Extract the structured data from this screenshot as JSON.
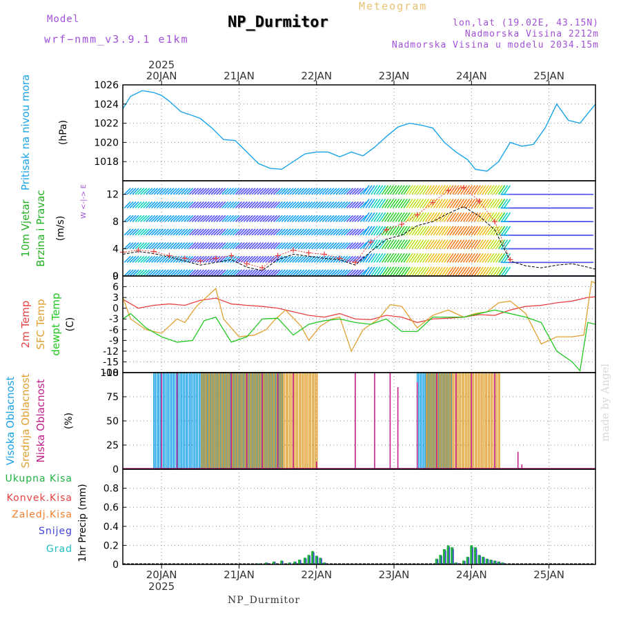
{
  "header": {
    "model_label": "Model",
    "model_name": "wrf−nmm_v3.9.1 e1km",
    "meteogram_label": "Meteogram",
    "station_title": "NP_Durmitor",
    "lonlat": "lon,lat (19.02E, 43.15N)",
    "elevation": "Nadmorska Visina 2212m",
    "model_elevation": "Nadmorska Visina u modelu 2034.15m",
    "year_top": "2025",
    "year_bottom": "2025",
    "footer_station": "NP_Durmitor",
    "signature": "made by Angel"
  },
  "colors": {
    "pressure": "#1aa3e8",
    "t2m": "#e84040",
    "sfc": "#e0a030",
    "dewpt": "#20c820",
    "high_cloud": "#1aa3e8",
    "mid_cloud": "#e0a030",
    "low_cloud": "#c0208a",
    "wind_speed": "#000000",
    "gust": "#e84040",
    "precip_total": "#20b040",
    "precip_conv": "#e84040",
    "precip_frozen": "#f08030",
    "precip_snow": "#4040d8",
    "precip_graupel": "#20c0c0",
    "panel_label_wind1": "#20b020",
    "panel_label_wind2": "#20b020"
  },
  "chart_data": [
    {
      "type": "line",
      "panel": "pressure",
      "title": "",
      "ylabel_main": "Pritisak na nivou mora",
      "ylabel_unit": "(hPa)",
      "x_ticks": [
        "20JAN",
        "21JAN",
        "22JAN",
        "23JAN",
        "24JAN",
        "25JAN"
      ],
      "x_range_days": [
        19.5,
        25.6
      ],
      "ylim": [
        1016,
        1026
      ],
      "yticks": [
        1018,
        1020,
        1022,
        1024,
        1026
      ],
      "grid": true,
      "series": [
        {
          "x": [
            19.5,
            19.6,
            19.75,
            19.9,
            20.0,
            20.1,
            20.25,
            20.4,
            20.5,
            20.65,
            20.8,
            20.95,
            21.1,
            21.25,
            21.4,
            21.55,
            21.7,
            21.85,
            22.0,
            22.15,
            22.3,
            22.45,
            22.6,
            22.75,
            22.9,
            23.05,
            23.2,
            23.35,
            23.5,
            23.65,
            23.8,
            23.95,
            24.05,
            24.2,
            24.35,
            24.5,
            24.65,
            24.8,
            24.95,
            25.1,
            25.25,
            25.4,
            25.5,
            25.6
          ],
          "values": [
            1023.5,
            1024.8,
            1025.4,
            1025.2,
            1024.9,
            1024.3,
            1023.2,
            1022.8,
            1022.5,
            1021.5,
            1020.3,
            1020.2,
            1019.0,
            1017.8,
            1017.3,
            1017.2,
            1018.0,
            1018.8,
            1019.0,
            1019.0,
            1018.5,
            1019.0,
            1018.6,
            1019.5,
            1020.6,
            1021.6,
            1022.0,
            1021.8,
            1021.5,
            1020.0,
            1019.0,
            1018.2,
            1017.2,
            1017.0,
            1018.0,
            1020.0,
            1019.6,
            1019.8,
            1021.5,
            1024.0,
            1022.3,
            1022.0,
            1023.0,
            1024.0
          ]
        }
      ]
    },
    {
      "type": "line",
      "panel": "wind",
      "ylabel_main": "10m Vjetar",
      "ylabel_main2": "Brzina i Pravac",
      "ylabel_unit": "(m/s)",
      "compass": "W <-|-> E",
      "ylim": [
        0,
        14
      ],
      "yticks": [
        0,
        4,
        8,
        12
      ],
      "grid": true,
      "barb_levels": [
        0,
        2,
        4,
        6,
        8,
        10,
        12
      ],
      "series": [
        {
          "name": "wind speed",
          "x": [
            19.5,
            19.7,
            19.9,
            20.1,
            20.3,
            20.5,
            20.7,
            20.9,
            21.1,
            21.3,
            21.5,
            21.7,
            21.9,
            22.1,
            22.3,
            22.5,
            22.7,
            22.9,
            23.1,
            23.3,
            23.5,
            23.7,
            23.9,
            24.1,
            24.3,
            24.5,
            24.7,
            24.9,
            25.1,
            25.3,
            25.5,
            25.6
          ],
          "values": [
            3.2,
            3.6,
            3.3,
            2.8,
            2.2,
            1.6,
            2.0,
            2.4,
            1.3,
            0.8,
            2.4,
            3.2,
            2.9,
            2.6,
            2.4,
            1.6,
            3.6,
            5.4,
            6.0,
            7.4,
            8.0,
            9.2,
            10.2,
            8.8,
            6.8,
            2.2,
            1.5,
            1.2,
            1.6,
            1.8,
            1.3,
            1.0
          ]
        },
        {
          "name": "gust",
          "x": [
            19.5,
            19.7,
            19.9,
            20.1,
            20.3,
            20.5,
            20.7,
            20.9,
            21.1,
            21.3,
            21.5,
            21.7,
            21.9,
            22.1,
            22.3,
            22.5,
            22.7,
            22.9,
            23.1,
            23.3,
            23.5,
            23.7,
            23.9,
            24.1,
            24.3,
            24.5
          ],
          "values": [
            3.5,
            3.8,
            3.6,
            3.0,
            2.6,
            2.2,
            2.6,
            3.0,
            1.8,
            1.2,
            3.0,
            3.8,
            3.4,
            3.2,
            2.6,
            2.0,
            5.0,
            6.8,
            7.6,
            9.0,
            10.8,
            12.6,
            13.0,
            11.0,
            8.0,
            2.4
          ]
        }
      ]
    },
    {
      "type": "line",
      "panel": "temperature",
      "ylabel_main": "2m Temp",
      "ylabel_main2": "SFC Temp",
      "ylabel_main3": "dewpt Temp",
      "ylabel_unit": "(C)",
      "ylim": [
        -18,
        9
      ],
      "yticks": [
        -18,
        -15,
        -12,
        -9,
        -6,
        -3,
        0,
        3,
        6,
        9
      ],
      "grid": true,
      "series": [
        {
          "name": "2m Temp",
          "x": [
            19.5,
            19.7,
            19.9,
            20.1,
            20.3,
            20.5,
            20.7,
            20.9,
            21.1,
            21.3,
            21.5,
            21.7,
            21.9,
            22.1,
            22.3,
            22.5,
            22.7,
            22.9,
            23.1,
            23.3,
            23.5,
            23.7,
            23.9,
            24.1,
            24.3,
            24.5,
            24.7,
            24.9,
            25.1,
            25.3,
            25.5,
            25.6
          ],
          "values": [
            2.5,
            0.0,
            0.8,
            1.2,
            0.8,
            2.2,
            2.8,
            1.2,
            0.8,
            0.5,
            0.0,
            -1.0,
            -2.0,
            -2.5,
            -1.5,
            -3.0,
            -3.2,
            -2.0,
            -2.5,
            -4.0,
            -3.0,
            -2.8,
            -2.5,
            -1.8,
            -2.0,
            -0.5,
            0.5,
            0.8,
            1.5,
            2.0,
            3.0,
            3.2
          ]
        },
        {
          "name": "SFC Temp",
          "x": [
            19.5,
            19.6,
            19.8,
            20.0,
            20.2,
            20.3,
            20.45,
            20.55,
            20.7,
            20.8,
            21.0,
            21.2,
            21.35,
            21.45,
            21.6,
            21.8,
            21.9,
            22.05,
            22.2,
            22.3,
            22.45,
            22.6,
            22.8,
            22.95,
            23.1,
            23.3,
            23.5,
            23.7,
            23.9,
            24.05,
            24.2,
            24.35,
            24.5,
            24.7,
            24.9,
            25.1,
            25.3,
            25.45,
            25.55,
            25.6
          ],
          "values": [
            3.0,
            -3.0,
            -6.0,
            -7.0,
            -3.0,
            -4.0,
            0.5,
            2.5,
            5.5,
            -3.0,
            -8.0,
            -7.5,
            -6.0,
            -3.5,
            -0.5,
            -5.0,
            -9.0,
            -5.0,
            -3.0,
            -2.5,
            -12.0,
            -6.0,
            -3.0,
            1.0,
            0.5,
            -5.5,
            -2.0,
            -0.5,
            -2.5,
            -1.5,
            -1.0,
            1.5,
            2.0,
            -1.5,
            -10.0,
            -8.0,
            -8.0,
            -7.5,
            7.5,
            7.0
          ]
        },
        {
          "name": "dewpt Temp",
          "x": [
            19.5,
            19.6,
            19.8,
            20.0,
            20.2,
            20.4,
            20.55,
            20.7,
            20.9,
            21.1,
            21.3,
            21.5,
            21.7,
            21.9,
            22.1,
            22.3,
            22.5,
            22.7,
            22.9,
            23.1,
            23.3,
            23.5,
            23.7,
            23.9,
            24.1,
            24.3,
            24.5,
            24.7,
            24.9,
            25.1,
            25.3,
            25.4,
            25.5,
            25.6
          ],
          "values": [
            -3.0,
            -1.5,
            -5.5,
            -8.0,
            -9.5,
            -9.0,
            -3.5,
            -2.5,
            -9.5,
            -8.0,
            -3.0,
            -2.8,
            -7.5,
            -4.5,
            -3.5,
            -3.0,
            -4.0,
            -4.5,
            -3.0,
            -6.5,
            -6.5,
            -2.5,
            -2.5,
            -2.5,
            -1.5,
            -0.5,
            -1.5,
            -2.5,
            -4.0,
            -12.0,
            -15.0,
            -17.5,
            -4.0,
            -4.5
          ]
        }
      ]
    },
    {
      "type": "bar",
      "panel": "cloud",
      "ylabel_main": "Visoka Oblacnost",
      "ylabel_main2": "Srednja Oblacnost",
      "ylabel_main3": "Niska Oblacnost",
      "ylabel_unit": "(%)",
      "ylim": [
        0,
        100
      ],
      "yticks": [
        0,
        25,
        50,
        75,
        100
      ],
      "grid": true,
      "high_cloud": {
        "start": 19.9,
        "end": 21.55,
        "step": 0.042,
        "value": 100
      },
      "mid_cloud": {
        "start": 20.5,
        "end": 22.0,
        "step": 0.042,
        "value": 100
      },
      "low_cloud": {
        "x": [
          20.0,
          20.2,
          20.9,
          21.1,
          21.3,
          21.5,
          21.7,
          22.0,
          22.5,
          22.75,
          22.95,
          23.05,
          23.3,
          23.55,
          23.8,
          24.0,
          24.3,
          24.6,
          24.65
        ],
        "values": [
          100,
          100,
          100,
          100,
          100,
          100,
          100,
          8,
          100,
          100,
          100,
          85,
          90,
          100,
          100,
          100,
          100,
          18,
          5
        ]
      },
      "high_cloud_2": {
        "start": 23.3,
        "end": 23.75,
        "step": 0.042,
        "value": 100
      },
      "mid_cloud_2": {
        "start": 23.4,
        "end": 24.35,
        "step": 0.042,
        "value": 100
      }
    },
    {
      "type": "bar",
      "panel": "precip",
      "ylabel_main": "1hr Precip",
      "ylabel_unit": "(mm)",
      "legend": [
        "Ukupna Kisa",
        "Konvek.Kisa",
        "Zaledj.Kisa",
        "Snijeg",
        "Grad"
      ],
      "ylim": [
        0,
        1.0
      ],
      "yticks": [
        0,
        0.2,
        0.4,
        0.6,
        0.8
      ],
      "grid": true,
      "x": [
        21.25,
        21.35,
        21.45,
        21.55,
        21.65,
        21.72,
        21.78,
        21.85,
        21.9,
        21.95,
        22.0,
        22.05,
        22.1,
        23.55,
        23.6,
        23.65,
        23.7,
        23.75,
        23.8,
        23.9,
        23.95,
        24.0,
        24.05,
        24.1,
        24.15,
        24.2,
        24.25,
        24.3,
        24.35,
        24.4
      ],
      "values": [
        0.01,
        0.02,
        0.03,
        0.04,
        0.02,
        0.03,
        0.05,
        0.07,
        0.1,
        0.14,
        0.09,
        0.07,
        0.02,
        0.06,
        0.1,
        0.16,
        0.2,
        0.18,
        0.02,
        0.04,
        0.08,
        0.2,
        0.18,
        0.1,
        0.08,
        0.06,
        0.05,
        0.04,
        0.03,
        0.02
      ]
    }
  ]
}
